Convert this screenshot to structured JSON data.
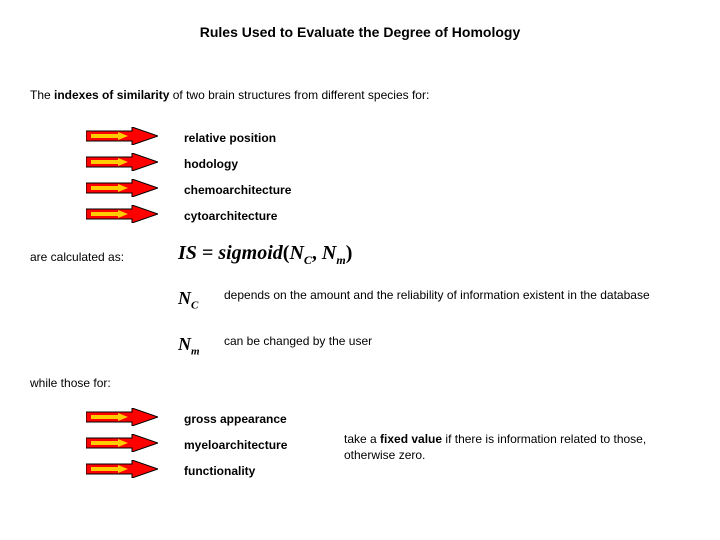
{
  "title_prefix": "Rules Used to Evaluate the ",
  "title_emph": "Degree of Homology",
  "intro_pre": "The ",
  "intro_bold": "indexes of similarity",
  "intro_post": " of two brain structures from different species for:",
  "group1_labels": [
    "relative position",
    "hodology",
    "chemoarchitecture",
    "cytoarchitecture"
  ],
  "calc_text": "are calculated as:",
  "formula_is": "IS",
  "formula_eq": " = ",
  "formula_fn": "sigmoid",
  "formula_open": "(",
  "formula_nc": "N",
  "formula_nc_sub": "C",
  "formula_comma": ", ",
  "formula_nm": "N",
  "formula_nm_sub": "m",
  "formula_close": ")",
  "nc_sym_main": "N",
  "nc_sym_sub": "C",
  "nc_text": "depends on the amount and the reliability of information existent in the database",
  "nm_sym_main": "N",
  "nm_sym_sub": "m",
  "nm_text": "can be changed by the user",
  "while_text": "while those for:",
  "group2_labels": [
    "gross appearance",
    "myeloarchitecture",
    "functionality"
  ],
  "right_pre": "take a ",
  "right_bold": "fixed value",
  "right_post": " if there is information related to those, otherwise zero.",
  "arrow_colors": {
    "fill": "#ff0000",
    "stroke": "#000000",
    "yellow": "#ffcc00"
  },
  "fonts": {
    "body": 12,
    "title": 14,
    "formula": 20,
    "var": 18
  }
}
